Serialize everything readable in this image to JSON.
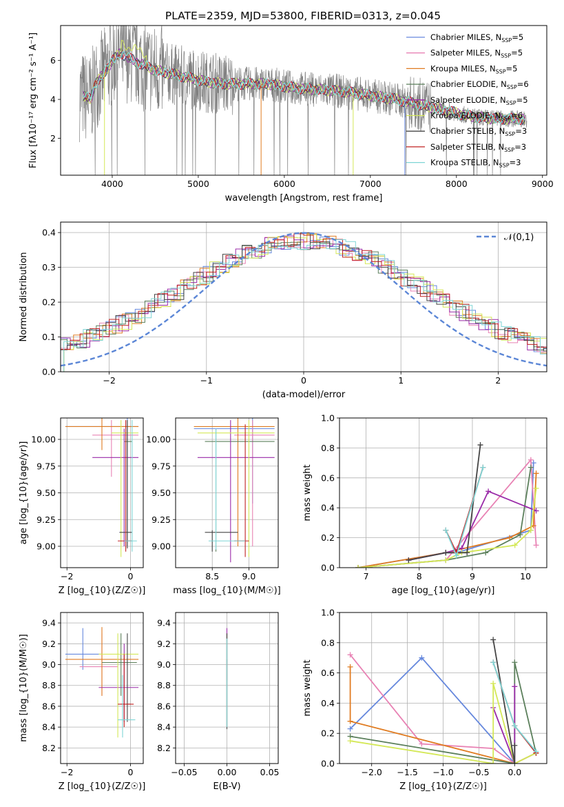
{
  "figure": {
    "title": "PLATE=2359, MJD=53800, FIBERID=0313, z=0.045"
  },
  "models": [
    {
      "name": "Chabrier MILES, N$_{SSP}$=5",
      "label": "Chabrier MILES, N",
      "nssp": "=5",
      "color": "#6688dd"
    },
    {
      "name": "Salpeter MILES, N$_{SSP}$=5",
      "label": "Salpeter MILES, N",
      "nssp": "=5",
      "color": "#e882b4"
    },
    {
      "name": "Kroupa MILES, N$_{SSP}$=5",
      "label": "Kroupa MILES, N",
      "nssp": "=5",
      "color": "#e07b20"
    },
    {
      "name": "Chabrier ELODIE, N$_{SSP}$=6",
      "label": "Chabrier ELODIE, N",
      "nssp": "=6",
      "color": "#5b7f5b"
    },
    {
      "name": "Salpeter ELODIE, N$_{SSP}$=5",
      "label": "Salpeter ELODIE, N",
      "nssp": "=5",
      "color": "#9a2aa8"
    },
    {
      "name": "Kroupa ELODIE, N$_{SSP}$=6",
      "label": "Kroupa ELODIE, N",
      "nssp": "=6",
      "color": "#d4e857"
    },
    {
      "name": "Chabrier STELIB, N$_{SSP}$=3",
      "label": "Chabrier STELIB, N",
      "nssp": "=3",
      "color": "#444444"
    },
    {
      "name": "Salpeter STELIB, N$_{SSP}$=3",
      "label": "Salpeter STELIB, N",
      "nssp": "=3",
      "color": "#c02020"
    },
    {
      "name": "Kroupa STELIB, N$_{SSP}$=3",
      "label": "Kroupa STELIB, N",
      "nssp": "=3",
      "color": "#7ed6d6"
    }
  ],
  "chart_data": [
    {
      "id": "spectrum",
      "type": "line",
      "xlabel": "wavelength [Angstrom, rest frame]",
      "ylabel": "Flux [f$_\\lambda$10$^{-17}$ erg cm$^{-2}$ s$^{-1}$ A$^{-1}$]",
      "xlim": [
        3400,
        9050
      ],
      "ylim": [
        0.1,
        7.8
      ],
      "xticks": [
        "4000",
        "5000",
        "6000",
        "7000",
        "8000",
        "9000"
      ],
      "yticks": [
        "2",
        "4",
        "6"
      ],
      "grid": false,
      "legend": "upper right",
      "continuum_points": [
        [
          3650,
          4.2
        ],
        [
          3750,
          4.0
        ],
        [
          3800,
          4.8
        ],
        [
          3900,
          5.3
        ],
        [
          4000,
          6.0
        ],
        [
          4100,
          6.4
        ],
        [
          4200,
          6.1
        ],
        [
          4300,
          5.9
        ],
        [
          4400,
          5.7
        ],
        [
          4500,
          5.5
        ],
        [
          4700,
          5.3
        ],
        [
          4900,
          5.1
        ],
        [
          5100,
          4.9
        ],
        [
          5300,
          4.8
        ],
        [
          5500,
          4.8
        ],
        [
          5800,
          4.8
        ],
        [
          6100,
          4.6
        ],
        [
          6400,
          4.5
        ],
        [
          6700,
          4.4
        ],
        [
          7000,
          4.2
        ],
        [
          7300,
          4.0
        ],
        [
          7600,
          3.7
        ],
        [
          7900,
          3.4
        ],
        [
          8200,
          3.1
        ],
        [
          8500,
          3.0
        ],
        [
          8800,
          3.0
        ]
      ]
    },
    {
      "id": "residual_histogram",
      "type": "bar",
      "xlabel": "(data-model)/error",
      "ylabel": "Normed distribution",
      "xlim": [
        -2.5,
        2.5
      ],
      "ylim": [
        0,
        0.43
      ],
      "xticks": [
        "−2",
        "−1",
        "0",
        "1",
        "2"
      ],
      "yticks": [
        "0.0",
        "0.1",
        "0.2",
        "0.3",
        "0.4"
      ],
      "grid": true,
      "legend": "upper right",
      "reference_curve": "$\\mathcal{N}(0,1)$",
      "bin_width": 0.1
    },
    {
      "id": "age_vs_Z",
      "type": "scatter",
      "xlabel": "Z [log$_{10}$(Z/Z$_\\odot$)]",
      "ylabel": "age  [log$_{10}$(age/yr)]",
      "xlim": [
        -2.2,
        0.4
      ],
      "ylim": [
        8.8,
        10.2
      ],
      "xticks": [
        "−2",
        "0"
      ],
      "yticks": [
        "9.00",
        "9.25",
        "9.50",
        "9.75",
        "10.00"
      ],
      "grid": true
    },
    {
      "id": "age_vs_mass",
      "type": "scatter",
      "xlabel": "mass [log$_{10}$(M/M$_\\odot$)]",
      "ylabel": "",
      "xlim": [
        8.0,
        9.4
      ],
      "ylim": [
        8.8,
        10.2
      ],
      "xticks": [
        "8.5",
        "9.0"
      ],
      "yticks": [
        "9.00",
        "9.25",
        "9.50",
        "9.75",
        "10.00"
      ],
      "grid": true
    },
    {
      "id": "massweight_vs_age",
      "type": "line",
      "xlabel": "age  [log$_{10}$(age/yr)]",
      "ylabel": "mass weight",
      "xlim": [
        6.5,
        10.4
      ],
      "ylim": [
        0.0,
        1.0
      ],
      "xticks": [
        "7",
        "8",
        "9",
        "10"
      ],
      "yticks": [
        "0.0",
        "0.2",
        "0.4",
        "0.6",
        "0.8",
        "1.0"
      ],
      "grid": true,
      "series": [
        {
          "model": 0,
          "x": [
            6.85,
            8.5,
            8.7,
            10.1,
            10.15
          ],
          "y": [
            0.0,
            0.1,
            0.1,
            0.25,
            0.7
          ]
        },
        {
          "model": 1,
          "x": [
            6.85,
            8.5,
            10.1,
            10.2
          ],
          "y": [
            0.0,
            0.05,
            0.72,
            0.15
          ]
        },
        {
          "model": 2,
          "x": [
            6.85,
            8.5,
            9.7,
            10.15,
            10.2
          ],
          "y": [
            0.0,
            0.1,
            0.2,
            0.28,
            0.63
          ]
        },
        {
          "model": 3,
          "x": [
            6.85,
            8.5,
            9.25,
            9.9,
            10.1
          ],
          "y": [
            0.0,
            0.05,
            0.1,
            0.22,
            0.67
          ]
        },
        {
          "model": 4,
          "x": [
            7.8,
            8.5,
            8.8,
            9.3,
            10.2
          ],
          "y": [
            0.05,
            0.1,
            0.13,
            0.51,
            0.38
          ]
        },
        {
          "model": 5,
          "x": [
            6.85,
            8.5,
            8.8,
            9.8,
            10.1,
            10.2
          ],
          "y": [
            0.0,
            0.05,
            0.1,
            0.15,
            0.25,
            0.53
          ]
        },
        {
          "model": 6,
          "x": [
            7.8,
            8.5,
            8.9,
            9.15
          ],
          "y": [
            0.05,
            0.1,
            0.1,
            0.82
          ]
        },
        {
          "model": 7,
          "x": [
            8.5,
            8.7,
            9.2
          ],
          "y": [
            0.25,
            0.1,
            0.67
          ]
        },
        {
          "model": 8,
          "x": [
            8.5,
            8.7,
            9.2
          ],
          "y": [
            0.25,
            0.08,
            0.67
          ]
        }
      ]
    },
    {
      "id": "mass_vs_Z",
      "type": "scatter",
      "xlabel": "Z [log$_{10}$(Z/Z$_\\odot$)]",
      "ylabel": "mass [log$_{10}$(M/M$_\\odot$)]",
      "xlim": [
        -2.2,
        0.4
      ],
      "ylim": [
        8.05,
        9.5
      ],
      "xticks": [
        "−2",
        "0"
      ],
      "yticks": [
        "8.2",
        "8.4",
        "8.6",
        "8.8",
        "9.0",
        "9.2",
        "9.4"
      ],
      "grid": true
    },
    {
      "id": "mass_vs_ebv",
      "type": "scatter",
      "xlabel": "E(B-V)",
      "ylabel": "",
      "xlim": [
        -0.06,
        0.06
      ],
      "ylim": [
        8.05,
        9.5
      ],
      "xticks": [
        "−0.05",
        "0.00",
        "0.05"
      ],
      "yticks": [
        "8.2",
        "8.4",
        "8.6",
        "8.8",
        "9.0",
        "9.2",
        "9.4"
      ],
      "grid": true
    },
    {
      "id": "massweight_vs_Z",
      "type": "line",
      "xlabel": "Z [log$_{10}$(Z/Z$_\\odot$)]",
      "ylabel": "mass weight",
      "xlim": [
        -2.45,
        0.45
      ],
      "ylim": [
        0.0,
        1.0
      ],
      "xticks": [
        "−2.0",
        "−1.5",
        "−1.0",
        "−0.5",
        "0.0"
      ],
      "yticks": [
        "0.0",
        "0.2",
        "0.4",
        "0.6",
        "0.8",
        "1.0"
      ],
      "grid": true,
      "series": [
        {
          "model": 0,
          "x": [
            -2.3,
            -1.3,
            0.0,
            0.3
          ],
          "y": [
            0.23,
            0.7,
            0.0,
            0.07
          ]
        },
        {
          "model": 1,
          "x": [
            -2.3,
            -1.3,
            -0.3,
            0.0
          ],
          "y": [
            0.72,
            0.13,
            0.1,
            0.0
          ]
        },
        {
          "model": 2,
          "x": [
            -2.3,
            -2.3,
            0.0,
            0.3
          ],
          "y": [
            0.64,
            0.28,
            0.0,
            0.07
          ]
        },
        {
          "model": 3,
          "x": [
            -2.3,
            0.0,
            0.0,
            0.3
          ],
          "y": [
            0.18,
            0.0,
            0.67,
            0.07
          ]
        },
        {
          "model": 4,
          "x": [
            -0.3,
            0.0,
            0.0
          ],
          "y": [
            0.37,
            0.0,
            0.51
          ]
        },
        {
          "model": 5,
          "x": [
            -2.3,
            -0.3,
            -0.3,
            0.0,
            0.3
          ],
          "y": [
            0.15,
            0.0,
            0.53,
            0.0,
            0.07
          ]
        },
        {
          "model": 6,
          "x": [
            -0.3,
            0.0,
            0.0
          ],
          "y": [
            0.82,
            0.0,
            0.12
          ]
        },
        {
          "model": 7,
          "x": [
            -0.3,
            0.0,
            0.3
          ],
          "y": [
            0.67,
            0.25,
            0.07
          ]
        },
        {
          "model": 8,
          "x": [
            -0.3,
            0.0,
            0.3
          ],
          "y": [
            0.67,
            0.25,
            0.08
          ]
        }
      ]
    }
  ]
}
